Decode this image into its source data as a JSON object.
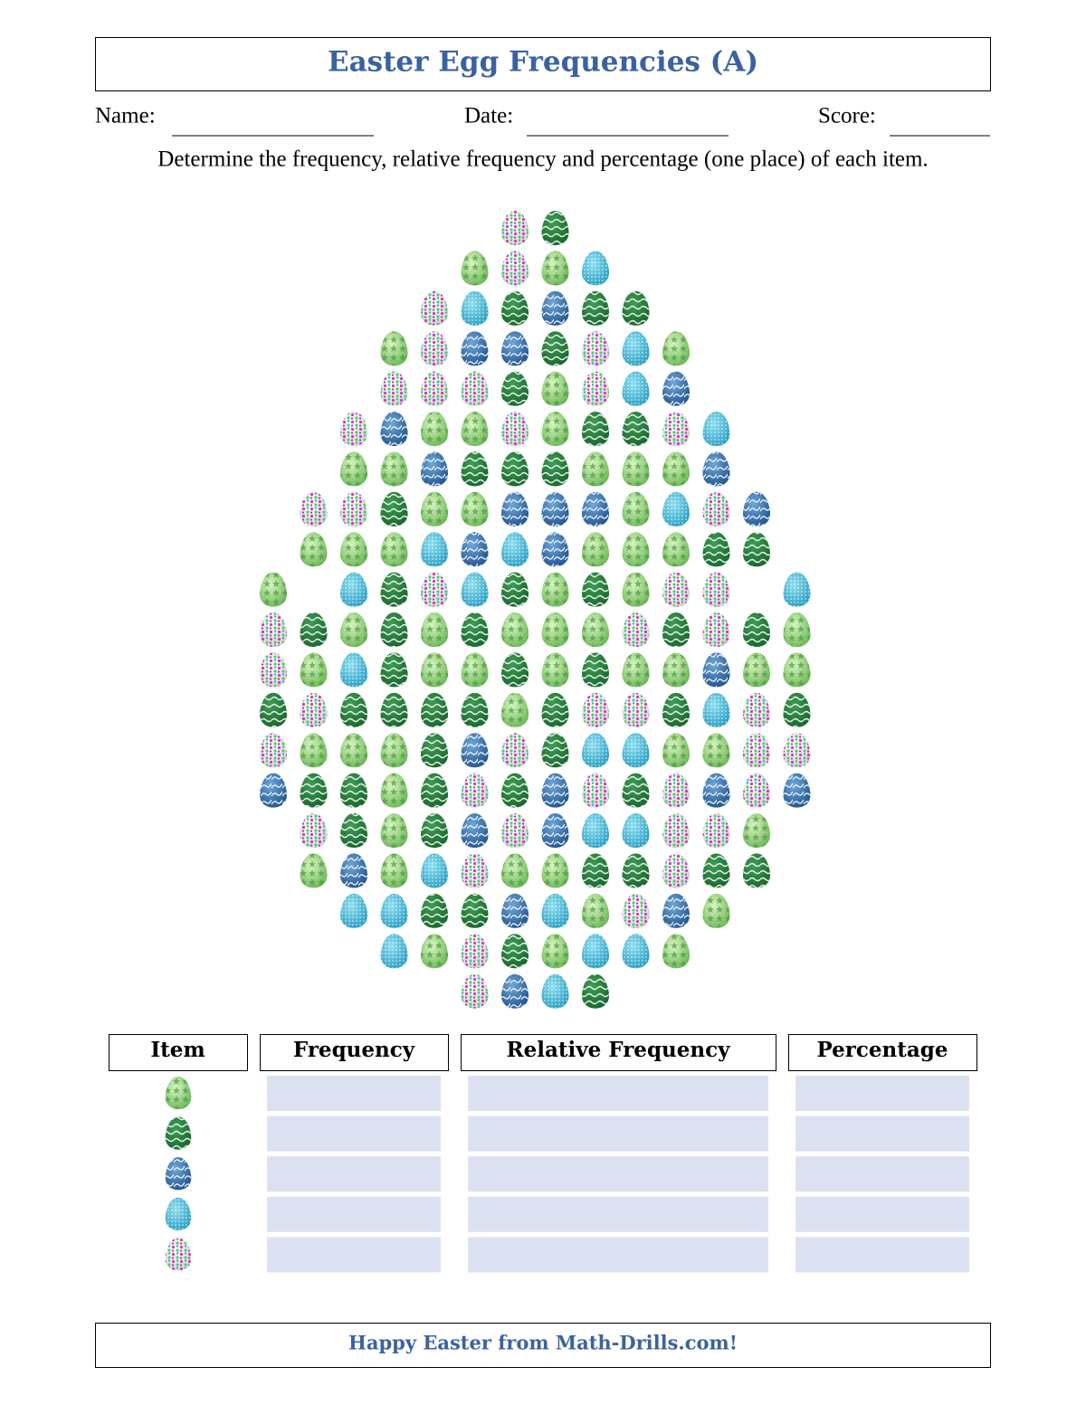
{
  "header": {
    "title": "Easter Egg Frequencies (A)",
    "name_label": "Name:",
    "date_label": "Date:",
    "score_label": "Score:",
    "instructions": "Determine the frequency, relative frequency and percentage (one place) of each item."
  },
  "egg_grid": [
    [
      null,
      null,
      null,
      null,
      null,
      null,
      "hearts",
      "wave",
      null,
      null,
      null,
      null,
      null,
      null
    ],
    [
      null,
      null,
      null,
      null,
      null,
      "star",
      "hearts",
      "star",
      "dots",
      null,
      null,
      null,
      null,
      null
    ],
    [
      null,
      null,
      null,
      null,
      "hearts",
      "dots",
      "wave",
      "blue",
      "wave",
      "wave",
      null,
      null,
      null,
      null
    ],
    [
      null,
      null,
      null,
      "star",
      "hearts",
      "blue",
      "blue",
      "wave",
      "hearts",
      "dots",
      "star",
      null,
      null,
      null
    ],
    [
      null,
      null,
      null,
      "hearts",
      "hearts",
      "hearts",
      "wave",
      "star",
      "hearts",
      "dots",
      "blue",
      null,
      null,
      null
    ],
    [
      null,
      null,
      "hearts",
      "blue",
      "star",
      "star",
      "hearts",
      "star",
      "wave",
      "wave",
      "hearts",
      "dots",
      null,
      null
    ],
    [
      null,
      null,
      "star",
      "star",
      "blue",
      "wave",
      "wave",
      "wave",
      "star",
      "star",
      "star",
      "blue",
      null,
      null
    ],
    [
      null,
      "hearts",
      "hearts",
      "wave",
      "star",
      "star",
      "blue",
      "blue",
      "blue",
      "star",
      "dots",
      "hearts",
      "blue",
      null
    ],
    [
      null,
      "star",
      "star",
      "star",
      "dots",
      "blue",
      "dots",
      "blue",
      "star",
      "star",
      "star",
      "wave",
      "wave",
      null
    ],
    [
      "star",
      null,
      "dots",
      "wave",
      "hearts",
      "dots",
      "wave",
      "star",
      "wave",
      "star",
      "hearts",
      "hearts",
      null,
      "dots"
    ],
    [
      "hearts",
      "wave",
      "star",
      "wave",
      "star",
      "wave",
      "star",
      "star",
      "star",
      "hearts",
      "wave",
      "hearts",
      "wave",
      "star"
    ],
    [
      "hearts",
      "star",
      "dots",
      "wave",
      "star",
      "star",
      "wave",
      "star",
      "wave",
      "star",
      "star",
      "blue",
      "star",
      "star"
    ],
    [
      "wave",
      "hearts",
      "wave",
      "wave",
      "wave",
      "wave",
      "star",
      "wave",
      "hearts",
      "hearts",
      "wave",
      "dots",
      "hearts",
      "wave"
    ],
    [
      "hearts",
      "star",
      "star",
      "star",
      "wave",
      "blue",
      "hearts",
      "wave",
      "dots",
      "dots",
      "star",
      "star",
      "hearts",
      "hearts"
    ],
    [
      "blue",
      "wave",
      "wave",
      "star",
      "wave",
      "hearts",
      "wave",
      "blue",
      "hearts",
      "wave",
      "hearts",
      "blue",
      "hearts",
      "blue"
    ],
    [
      null,
      "hearts",
      "wave",
      "star",
      "wave",
      "blue",
      "hearts",
      "blue",
      "dots",
      "dots",
      "hearts",
      "hearts",
      "star",
      null
    ],
    [
      null,
      "star",
      "blue",
      "star",
      "dots",
      "hearts",
      "star",
      "star",
      "wave",
      "wave",
      "hearts",
      "wave",
      "wave",
      null
    ],
    [
      null,
      null,
      "dots",
      "dots",
      "wave",
      "wave",
      "blue",
      "dots",
      "star",
      "hearts",
      "blue",
      "star",
      null,
      null
    ],
    [
      null,
      null,
      null,
      "dots",
      "star",
      "hearts",
      "wave",
      "star",
      "dots",
      "dots",
      "star",
      null,
      null,
      null
    ],
    [
      null,
      null,
      null,
      null,
      null,
      "hearts",
      "blue",
      "dots",
      "wave",
      null,
      null,
      null,
      null,
      null
    ]
  ],
  "table": {
    "headers": [
      "Item",
      "Frequency",
      "Relative Frequency",
      "Percentage"
    ],
    "items": [
      "star",
      "wave",
      "blue",
      "dots",
      "hearts"
    ]
  },
  "footer": "Happy Easter from Math-Drills.com!"
}
